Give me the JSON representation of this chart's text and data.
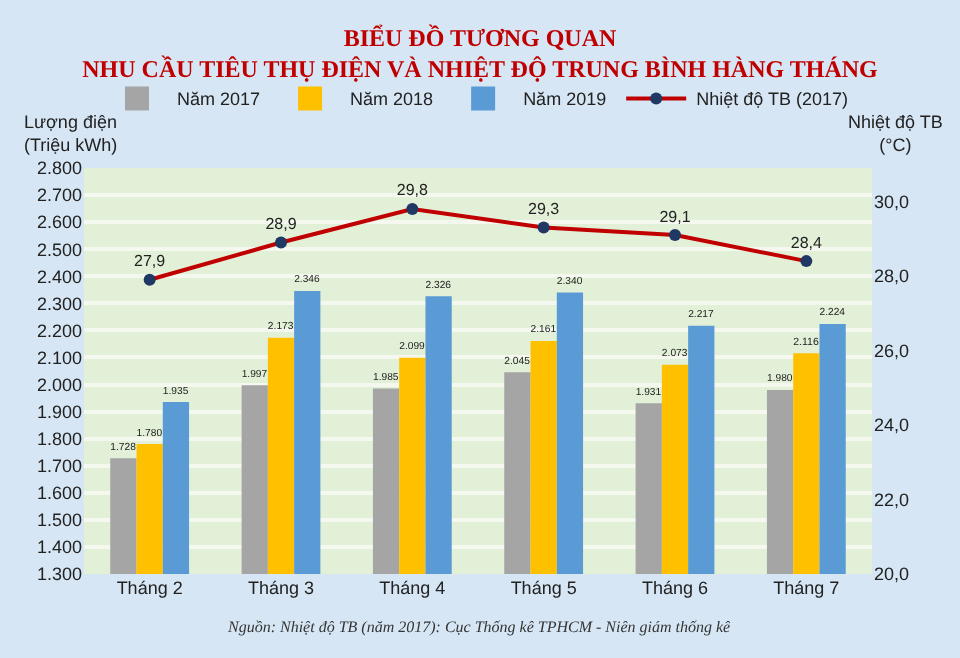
{
  "chart_data": {
    "type": "bar",
    "title": "BIỂU ĐỒ TƯƠNG QUAN",
    "subtitle": "NHU CẦU TIÊU THỤ ĐIỆN VÀ NHIỆT ĐỘ TRUNG BÌNH HÀNG THÁNG",
    "ylabel": "Lượng điện\n(Triệu kWh)",
    "y2label": "Nhiệt độ TB\n(°C)",
    "categories": [
      "Tháng 2",
      "Tháng 3",
      "Tháng 4",
      "Tháng 5",
      "Tháng 6",
      "Tháng 7"
    ],
    "series": [
      {
        "name": "Năm 2017",
        "color": "#a5a5a5",
        "values": [
          1728,
          1997,
          1985,
          2045,
          1931,
          1980
        ],
        "value_labels": [
          "1.728",
          "1.997",
          "1.985",
          "2.045",
          "1.931",
          "1.980"
        ]
      },
      {
        "name": "Năm 2018",
        "color": "#ffc000",
        "values": [
          1780,
          2173,
          2099,
          2161,
          2073,
          2116
        ],
        "value_labels": [
          "1.780",
          "2.173",
          "2.099",
          "2.161",
          "2.073",
          "2.116"
        ]
      },
      {
        "name": "Năm 2019",
        "color": "#5b9bd5",
        "values": [
          1935,
          2346,
          2326,
          2340,
          2217,
          2224
        ],
        "value_labels": [
          "1.935",
          "2.346",
          "2.326",
          "2.340",
          "2.217",
          "2.224"
        ]
      },
      {
        "name": "Nhiệt độ TB (2017)",
        "type": "line",
        "axis": "y2",
        "color": "#c00000",
        "marker": "circle",
        "values": [
          27.9,
          28.9,
          29.8,
          29.3,
          29.1,
          28.4
        ],
        "value_labels": [
          "27,9",
          "28,9",
          "29,8",
          "29,3",
          "29,1",
          "28,4"
        ]
      }
    ],
    "ylim": [
      1300,
      2800
    ],
    "yticks": [
      {
        "value": 1300,
        "label": "1.300"
      },
      {
        "value": 1400,
        "label": "1.400"
      },
      {
        "value": 1500,
        "label": "1.500"
      },
      {
        "value": 1600,
        "label": "1.600"
      },
      {
        "value": 1700,
        "label": "1.700"
      },
      {
        "value": 1800,
        "label": "1.800"
      },
      {
        "value": 1900,
        "label": "1.900"
      },
      {
        "value": 2000,
        "label": "2.000"
      },
      {
        "value": 2100,
        "label": "2.100"
      },
      {
        "value": 2200,
        "label": "2.200"
      },
      {
        "value": 2300,
        "label": "2.300"
      },
      {
        "value": 2400,
        "label": "2.400"
      },
      {
        "value": 2500,
        "label": "2.500"
      },
      {
        "value": 2600,
        "label": "2.600"
      },
      {
        "value": 2700,
        "label": "2.700"
      },
      {
        "value": 2800,
        "label": "2.800"
      }
    ],
    "y2lim": [
      20,
      30.9
    ],
    "y2ticks": [
      {
        "value": 20,
        "label": "20,0"
      },
      {
        "value": 22,
        "label": "22,0"
      },
      {
        "value": 24,
        "label": "24,0"
      },
      {
        "value": 26,
        "label": "26,0"
      },
      {
        "value": 28,
        "label": "28,0"
      },
      {
        "value": 30,
        "label": "30,0"
      }
    ],
    "grid": "y",
    "legend": "top",
    "annotations": [
      "Nguồn: Nhiệt độ TB (năm 2017): Cục Thống kê TPHCM - Niên giám thống kê"
    ]
  }
}
